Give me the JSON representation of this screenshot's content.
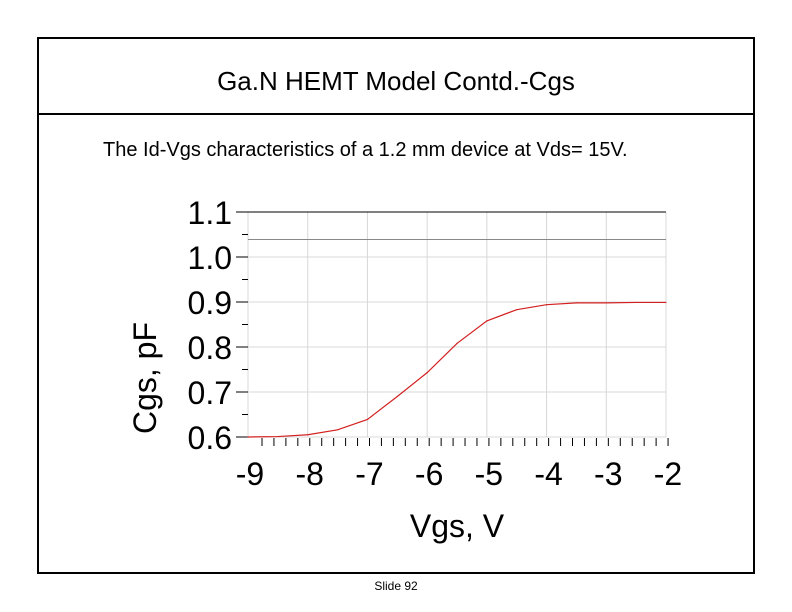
{
  "slide": {
    "title": "Ga.N HEMT Model Contd.-Cgs",
    "subtitle": "The Id-Vgs characteristics of a 1.2 mm device at Vds= 15V.",
    "footer": "Slide 92"
  },
  "chart_data": {
    "type": "line",
    "xlabel": "Vgs, V",
    "ylabel": "Cgs, pF",
    "xlim": [
      -9,
      -2
    ],
    "ylim": [
      0.6,
      1.1
    ],
    "x_ticks": [
      "-9",
      "-8",
      "-7",
      "-6",
      "-5",
      "-4",
      "-3",
      "-2"
    ],
    "y_ticks": [
      "1.1",
      "1.0",
      "0.9",
      "0.8",
      "0.7",
      "0.6"
    ],
    "grid": true,
    "line_color": "#d42020",
    "series": [
      {
        "x": [
          -9.0,
          -8.5,
          -8.0,
          -7.5,
          -7.0,
          -6.5,
          -6.0,
          -5.5,
          -5.0,
          -4.5,
          -4.0,
          -3.5,
          -3.0,
          -2.5,
          -2.0
        ],
        "values": [
          0.6,
          0.601,
          0.605,
          0.616,
          0.639,
          0.69,
          0.743,
          0.808,
          0.858,
          0.883,
          0.894,
          0.898,
          0.898,
          0.899,
          0.899
        ]
      }
    ]
  }
}
